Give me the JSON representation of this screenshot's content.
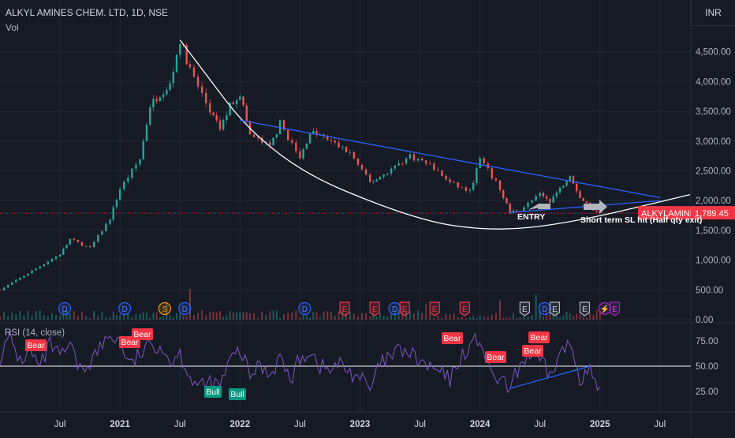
{
  "header": {
    "title": "ALKYL AMINES CHEM. LTD, 1D, NSE",
    "volume_label": "Vol",
    "currency": "INR"
  },
  "colors": {
    "background": "#161a25",
    "grid": "#232733",
    "candle_up": "#26a69a",
    "candle_down": "#ef5350",
    "curve": "#ffffff",
    "trend_line": "#2962ff",
    "rsi_line": "#7e57c2",
    "bear_badge": "#f23645",
    "bull_badge": "#089981",
    "price_tag": "#f23645"
  },
  "price_tag": {
    "symbol": "ALKYLAMINE",
    "value": "1,789.45"
  },
  "annotations": {
    "entry": "ENTRY",
    "stop_loss": "Short term SL hit (Half qty exit)"
  },
  "rsi": {
    "label": "RSI (14, close)",
    "signals": [
      {
        "label": "Bear",
        "date": "2020-02"
      },
      {
        "label": "Bear",
        "date": "2020-12"
      },
      {
        "label": "Bear",
        "date": "2021-01"
      },
      {
        "label": "Bull",
        "date": "2021-09"
      },
      {
        "label": "Bull",
        "date": "2021-11"
      },
      {
        "label": "Bear",
        "date": "2024-01"
      },
      {
        "label": "Bear",
        "date": "2024-06"
      },
      {
        "label": "Bear",
        "date": "2024-10"
      },
      {
        "label": "Bear",
        "date": "2024-10"
      }
    ]
  },
  "events": [
    {
      "type": "dividend",
      "letter": "D",
      "date": "2020-07"
    },
    {
      "type": "dividend",
      "letter": "D",
      "date": "2021-01"
    },
    {
      "type": "split",
      "letter": "S",
      "date": "2021-05"
    },
    {
      "type": "dividend",
      "letter": "D",
      "date": "2021-07"
    },
    {
      "type": "dividend",
      "letter": "D",
      "date": "2022-07"
    },
    {
      "type": "earnings",
      "letter": "E",
      "date": "2022-11"
    },
    {
      "type": "earnings",
      "letter": "E",
      "date": "2023-02"
    },
    {
      "type": "dividend",
      "letter": "D",
      "date": "2023-04"
    },
    {
      "type": "earnings",
      "letter": "E",
      "date": "2023-05"
    },
    {
      "type": "earnings",
      "letter": "E",
      "date": "2023-08"
    },
    {
      "type": "earnings",
      "letter": "E",
      "date": "2023-11"
    },
    {
      "type": "earnings_upcoming",
      "letter": "E",
      "date": "2024-05"
    },
    {
      "type": "dividend",
      "letter": "D",
      "date": "2024-07"
    },
    {
      "type": "earnings_upcoming",
      "letter": "E",
      "date": "2024-08"
    },
    {
      "type": "earnings_upcoming",
      "letter": "E",
      "date": "2024-11"
    },
    {
      "type": "flash",
      "letter": "⚡",
      "date": "2025-01"
    },
    {
      "type": "earnings_future",
      "letter": "E",
      "date": "2025-02"
    }
  ],
  "chart_data": {
    "type": "candlestick",
    "x_axis": {
      "type": "date",
      "tick_labels": [
        "Jul",
        "2021",
        "Jul",
        "2022",
        "Jul",
        "2023",
        "Jul",
        "2024",
        "Jul",
        "2025",
        "Jul"
      ],
      "tick_dates": [
        "2020-07",
        "2021-01",
        "2021-07",
        "2022-01",
        "2022-07",
        "2023-01",
        "2023-07",
        "2024-01",
        "2024-07",
        "2025-01",
        "2025-07"
      ],
      "range": [
        "2020-01",
        "2025-10"
      ]
    },
    "price_axis": {
      "ticks": [
        0,
        500,
        1000,
        1500,
        2000,
        2500,
        3000,
        3500,
        4000,
        4500
      ],
      "tick_labels": [
        "0.00",
        "500.00",
        "1,000.00",
        "1,500.00",
        "2,000.00",
        "2,500.00",
        "3,000.00",
        "3,500.00",
        "4,000.00",
        "4,500.00"
      ],
      "range": [
        0,
        5000
      ]
    },
    "rsi_axis": {
      "ticks": [
        25,
        50,
        75
      ],
      "tick_labels": [
        "25.00",
        "50.00",
        "75.00"
      ],
      "range": [
        0,
        100
      ],
      "level_line": 50
    },
    "last_price": 1789.45,
    "price_path": [
      [
        "2020-01",
        500
      ],
      [
        "2020-03",
        700
      ],
      [
        "2020-05",
        900
      ],
      [
        "2020-07",
        1100
      ],
      [
        "2020-08",
        1350
      ],
      [
        "2020-10",
        1200
      ],
      [
        "2020-12",
        1700
      ],
      [
        "2021-01",
        2200
      ],
      [
        "2021-03",
        2700
      ],
      [
        "2021-04",
        3600
      ],
      [
        "2021-05",
        3800
      ],
      [
        "2021-06",
        3950
      ],
      [
        "2021-07",
        4700
      ],
      [
        "2021-08",
        4200
      ],
      [
        "2021-10",
        3500
      ],
      [
        "2021-11",
        3200
      ],
      [
        "2021-12",
        3600
      ],
      [
        "2022-01",
        3800
      ],
      [
        "2022-02",
        3100
      ],
      [
        "2022-04",
        2900
      ],
      [
        "2022-05",
        3300
      ],
      [
        "2022-07",
        2700
      ],
      [
        "2022-08",
        3150
      ],
      [
        "2022-09",
        3100
      ],
      [
        "2022-12",
        2800
      ],
      [
        "2023-02",
        2300
      ],
      [
        "2023-03",
        2400
      ],
      [
        "2023-06",
        2750
      ],
      [
        "2023-08",
        2600
      ],
      [
        "2023-10",
        2300
      ],
      [
        "2023-12",
        2150
      ],
      [
        "2024-01",
        2700
      ],
      [
        "2024-03",
        2200
      ],
      [
        "2024-04",
        1800
      ],
      [
        "2024-05",
        1850
      ],
      [
        "2024-07",
        2100
      ],
      [
        "2024-08",
        2000
      ],
      [
        "2024-09",
        2200
      ],
      [
        "2024-10",
        2450
      ],
      [
        "2024-11",
        2050
      ],
      [
        "2024-12",
        1900
      ],
      [
        "2025-01",
        1789
      ]
    ],
    "rsi_path": [
      [
        "2020-01",
        60
      ],
      [
        "2020-02",
        78
      ],
      [
        "2020-03",
        55
      ],
      [
        "2020-04",
        65
      ],
      [
        "2020-05",
        48
      ],
      [
        "2020-06",
        72
      ],
      [
        "2020-07",
        58
      ],
      [
        "2020-08",
        70
      ],
      [
        "2020-09",
        45
      ],
      [
        "2020-10",
        55
      ],
      [
        "2020-11",
        68
      ],
      [
        "2020-12",
        80
      ],
      [
        "2021-01",
        76
      ],
      [
        "2021-02",
        50
      ],
      [
        "2021-03",
        62
      ],
      [
        "2021-04",
        70
      ],
      [
        "2021-05",
        72
      ],
      [
        "2021-06",
        55
      ],
      [
        "2021-07",
        63
      ],
      [
        "2021-08",
        40
      ],
      [
        "2021-09",
        28
      ],
      [
        "2021-10",
        34
      ],
      [
        "2021-11",
        30
      ],
      [
        "2021-12",
        55
      ],
      [
        "2022-01",
        66
      ],
      [
        "2022-02",
        40
      ],
      [
        "2022-03",
        52
      ],
      [
        "2022-04",
        42
      ],
      [
        "2022-05",
        60
      ],
      [
        "2022-06",
        35
      ],
      [
        "2022-07",
        58
      ],
      [
        "2022-08",
        66
      ],
      [
        "2022-09",
        50
      ],
      [
        "2022-10",
        46
      ],
      [
        "2022-11",
        52
      ],
      [
        "2022-12",
        44
      ],
      [
        "2023-01",
        40
      ],
      [
        "2023-02",
        25
      ],
      [
        "2023-03",
        52
      ],
      [
        "2023-04",
        58
      ],
      [
        "2023-05",
        66
      ],
      [
        "2023-06",
        62
      ],
      [
        "2023-07",
        54
      ],
      [
        "2023-08",
        48
      ],
      [
        "2023-09",
        44
      ],
      [
        "2023-10",
        36
      ],
      [
        "2023-11",
        58
      ],
      [
        "2023-12",
        70
      ],
      [
        "2024-01",
        78
      ],
      [
        "2024-02",
        42
      ],
      [
        "2024-03",
        36
      ],
      [
        "2024-04",
        26
      ],
      [
        "2024-05",
        52
      ],
      [
        "2024-06",
        62
      ],
      [
        "2024-07",
        55
      ],
      [
        "2024-08",
        40
      ],
      [
        "2024-09",
        62
      ],
      [
        "2024-10",
        72
      ],
      [
        "2024-11",
        40
      ],
      [
        "2024-12",
        45
      ],
      [
        "2025-01",
        22
      ]
    ],
    "drawings": {
      "curve": [
        [
          "2021-07",
          4700
        ],
        [
          "2022-04",
          2700
        ],
        [
          "2023-06",
          1700
        ],
        [
          "2024-02",
          1480
        ],
        [
          "2024-10",
          1620
        ],
        [
          "2025-10",
          2100
        ]
      ],
      "resistance_line": [
        [
          "2022-01",
          3350
        ],
        [
          "2025-07",
          2050
        ]
      ],
      "support_line": [
        [
          "2024-04",
          1800
        ],
        [
          "2025-07",
          2000
        ]
      ],
      "rsi_trend_line": [
        [
          "2024-04",
          28
        ],
        [
          "2024-12",
          50
        ]
      ]
    }
  }
}
